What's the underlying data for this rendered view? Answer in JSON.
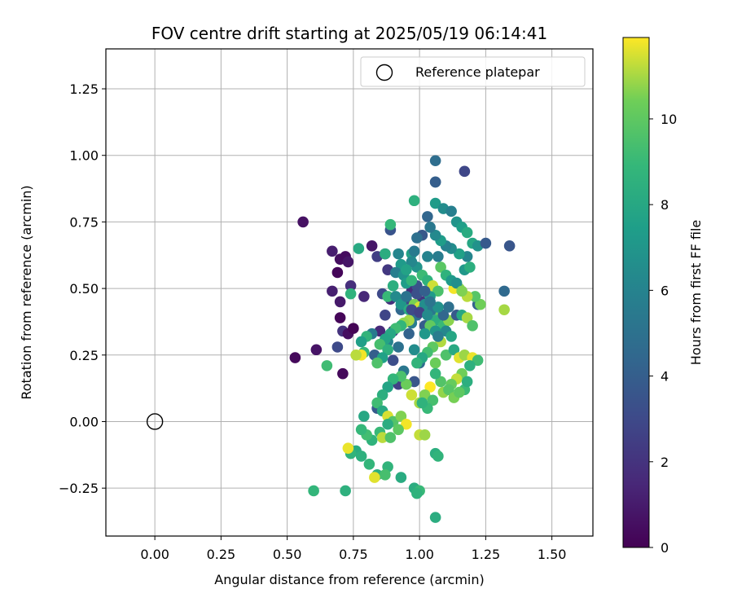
{
  "chart_data": {
    "type": "scatter",
    "title": "FOV centre drift starting at 2025/05/19 06:14:41",
    "xlabel": "Angular distance from reference (arcmin)",
    "ylabel": "Rotation from reference (arcmin)",
    "xlim": [
      -0.185,
      1.655
    ],
    "ylim": [
      -0.43,
      1.4
    ],
    "xticks": [
      0.0,
      0.25,
      0.5,
      0.75,
      1.0,
      1.25,
      1.5
    ],
    "xtick_labels": [
      "0.00",
      "0.25",
      "0.50",
      "0.75",
      "1.00",
      "1.25",
      "1.50"
    ],
    "yticks": [
      -0.25,
      0.0,
      0.25,
      0.5,
      0.75,
      1.0,
      1.25
    ],
    "ytick_labels": [
      "−0.25",
      "0.00",
      "0.25",
      "0.50",
      "0.75",
      "1.00",
      "1.25"
    ],
    "grid": true,
    "colormap": "viridis",
    "colorbar": {
      "label": "Hours from first FF file",
      "range": [
        0,
        11.9
      ],
      "ticks": [
        0,
        2,
        4,
        6,
        8,
        10
      ],
      "tick_labels": [
        "0",
        "2",
        "4",
        "6",
        "8",
        "10"
      ]
    },
    "legend": {
      "placement": "top-right",
      "entries": [
        {
          "label": "Reference platepar",
          "marker": "open-circle"
        }
      ]
    },
    "reference_point": {
      "x": 0.0,
      "y": 0.0
    },
    "series": [
      {
        "color_by": "hours",
        "points": [
          [
            0.56,
            0.75,
            0.6
          ],
          [
            0.53,
            0.24,
            0.3
          ],
          [
            0.61,
            0.27,
            0.7
          ],
          [
            0.67,
            0.64,
            1.1
          ],
          [
            0.7,
            0.61,
            0.5
          ],
          [
            0.72,
            0.62,
            0.4
          ],
          [
            0.73,
            0.6,
            0.8
          ],
          [
            0.69,
            0.56,
            0.2
          ],
          [
            0.67,
            0.49,
            1.2
          ],
          [
            0.7,
            0.45,
            0.9
          ],
          [
            0.74,
            0.51,
            1.8
          ],
          [
            0.7,
            0.39,
            0.2
          ],
          [
            0.71,
            0.34,
            2.0
          ],
          [
            0.73,
            0.33,
            0.5
          ],
          [
            0.75,
            0.35,
            0.1
          ],
          [
            0.69,
            0.28,
            3.0
          ],
          [
            0.71,
            0.18,
            0.3
          ],
          [
            0.79,
            0.47,
            1.5
          ],
          [
            0.82,
            0.66,
            0.8
          ],
          [
            0.84,
            0.62,
            2.5
          ],
          [
            0.87,
            0.63,
            1.0
          ],
          [
            0.89,
            0.72,
            3.5
          ],
          [
            0.88,
            0.57,
            2.2
          ],
          [
            0.86,
            0.48,
            3.0
          ],
          [
            0.89,
            0.46,
            1.9
          ],
          [
            0.87,
            0.4,
            2.8
          ],
          [
            0.85,
            0.34,
            1.6
          ],
          [
            0.9,
            0.34,
            2.4
          ],
          [
            0.82,
            0.33,
            5.5
          ],
          [
            0.83,
            0.25,
            4.0
          ],
          [
            0.88,
            0.3,
            6.0
          ],
          [
            0.9,
            0.23,
            3.2
          ],
          [
            0.92,
            0.28,
            5.0
          ],
          [
            0.84,
            0.05,
            3.8
          ],
          [
            0.92,
            0.14,
            2.6
          ],
          [
            0.93,
            0.42,
            4.5
          ],
          [
            0.95,
            0.46,
            2.9
          ],
          [
            0.97,
            0.49,
            1.7
          ],
          [
            0.99,
            0.51,
            3.4
          ],
          [
            1.01,
            0.45,
            2.1
          ],
          [
            0.99,
            0.4,
            4.8
          ],
          [
            1.02,
            0.36,
            3.9
          ],
          [
            0.97,
            0.37,
            5.6
          ],
          [
            0.96,
            0.33,
            4.2
          ],
          [
            0.98,
            0.27,
            6.5
          ],
          [
            1.0,
            0.22,
            4.7
          ],
          [
            0.94,
            0.19,
            5.3
          ],
          [
            0.98,
            0.15,
            3.6
          ],
          [
            0.92,
            0.63,
            6.1
          ],
          [
            0.93,
            0.59,
            7.2
          ],
          [
            0.91,
            0.56,
            5.7
          ],
          [
            0.94,
            0.55,
            6.8
          ],
          [
            0.95,
            0.52,
            7.4
          ],
          [
            0.9,
            0.51,
            8.4
          ],
          [
            0.88,
            0.47,
            9.0
          ],
          [
            0.91,
            0.47,
            6.4
          ],
          [
            0.93,
            0.44,
            7.0
          ],
          [
            0.96,
            0.42,
            8.2
          ],
          [
            0.98,
            0.44,
            10.5
          ],
          [
            1.0,
            0.43,
            11.5
          ],
          [
            1.01,
            0.42,
            9.8
          ],
          [
            0.96,
            0.38,
            11.0
          ],
          [
            0.94,
            0.37,
            10.8
          ],
          [
            0.93,
            0.36,
            8.8
          ],
          [
            0.91,
            0.35,
            9.2
          ],
          [
            0.89,
            0.33,
            8.0
          ],
          [
            0.87,
            0.31,
            7.8
          ],
          [
            0.85,
            0.29,
            9.4
          ],
          [
            0.88,
            0.27,
            8.5
          ],
          [
            0.86,
            0.24,
            7.6
          ],
          [
            0.84,
            0.22,
            9.6
          ],
          [
            0.8,
            0.32,
            8.7
          ],
          [
            0.78,
            0.3,
            7.5
          ],
          [
            0.79,
            0.26,
            8.9
          ],
          [
            0.78,
            0.25,
            11.8
          ],
          [
            0.76,
            0.25,
            11.2
          ],
          [
            0.74,
            0.48,
            8.6
          ],
          [
            0.77,
            0.65,
            8.1
          ],
          [
            0.87,
            0.63,
            8.3
          ],
          [
            0.89,
            0.74,
            8.9
          ],
          [
            0.97,
            0.63,
            7.7
          ],
          [
            0.99,
            0.58,
            6.9
          ],
          [
            1.01,
            0.55,
            9.1
          ],
          [
            1.03,
            0.53,
            8.6
          ],
          [
            1.05,
            0.51,
            11.4
          ],
          [
            1.07,
            0.49,
            9.5
          ],
          [
            1.04,
            0.47,
            7.3
          ],
          [
            1.02,
            0.44,
            6.6
          ],
          [
            1.05,
            0.42,
            5.4
          ],
          [
            1.08,
            0.4,
            9.9
          ],
          [
            1.06,
            0.38,
            8.4
          ],
          [
            1.04,
            0.36,
            10.1
          ],
          [
            1.02,
            0.33,
            7.1
          ],
          [
            1.07,
            0.34,
            8.3
          ],
          [
            1.09,
            0.36,
            9.0
          ],
          [
            1.11,
            0.38,
            10.7
          ],
          [
            1.1,
            0.34,
            6.2
          ],
          [
            1.12,
            0.32,
            7.9
          ],
          [
            1.08,
            0.3,
            11.1
          ],
          [
            1.05,
            0.28,
            10.0
          ],
          [
            1.03,
            0.26,
            9.3
          ],
          [
            1.01,
            0.24,
            8.0
          ],
          [
            0.99,
            0.22,
            8.7
          ],
          [
            1.06,
            0.22,
            10.3
          ],
          [
            1.1,
            0.25,
            9.6
          ],
          [
            1.13,
            0.27,
            8.1
          ],
          [
            1.15,
            0.24,
            11.6
          ],
          [
            1.17,
            0.25,
            10.9
          ],
          [
            1.2,
            0.24,
            11.7
          ],
          [
            1.22,
            0.23,
            9.2
          ],
          [
            1.19,
            0.21,
            8.5
          ],
          [
            1.16,
            0.18,
            10.4
          ],
          [
            1.14,
            0.16,
            11.3
          ],
          [
            1.12,
            0.14,
            10.2
          ],
          [
            1.08,
            0.15,
            9.7
          ],
          [
            1.06,
            0.18,
            8.8
          ],
          [
            1.04,
            0.13,
            11.9
          ],
          [
            1.02,
            0.1,
            10.6
          ],
          [
            1.0,
            0.07,
            11.0
          ],
          [
            1.05,
            0.08,
            9.4
          ],
          [
            1.09,
            0.11,
            10.8
          ],
          [
            1.11,
            0.12,
            9.8
          ],
          [
            1.13,
            0.09,
            10.5
          ],
          [
            1.17,
            0.12,
            9.1
          ],
          [
            1.18,
            0.15,
            8.4
          ],
          [
            1.15,
            0.11,
            10.0
          ],
          [
            1.03,
            0.05,
            9.0
          ],
          [
            1.01,
            0.07,
            8.6
          ],
          [
            0.97,
            0.1,
            11.4
          ],
          [
            0.95,
            0.14,
            10.3
          ],
          [
            0.93,
            0.17,
            9.5
          ],
          [
            0.9,
            0.16,
            8.8
          ],
          [
            0.88,
            0.13,
            7.8
          ],
          [
            0.86,
            0.1,
            8.4
          ],
          [
            0.84,
            0.07,
            9.2
          ],
          [
            0.86,
            0.04,
            8.1
          ],
          [
            0.88,
            0.02,
            11.5
          ],
          [
            0.9,
            0.0,
            9.7
          ],
          [
            0.93,
            0.02,
            10.6
          ],
          [
            0.95,
            -0.01,
            11.8
          ],
          [
            0.92,
            -0.03,
            10.0
          ],
          [
            0.88,
            -0.01,
            8.3
          ],
          [
            0.85,
            -0.04,
            9.0
          ],
          [
            0.82,
            -0.07,
            8.6
          ],
          [
            0.8,
            -0.05,
            9.3
          ],
          [
            0.79,
            0.02,
            8.0
          ],
          [
            0.78,
            -0.03,
            8.9
          ],
          [
            0.76,
            -0.11,
            8.2
          ],
          [
            0.74,
            -0.12,
            8.7
          ],
          [
            0.73,
            -0.1,
            11.7
          ],
          [
            0.78,
            -0.13,
            8.5
          ],
          [
            0.81,
            -0.16,
            8.8
          ],
          [
            0.84,
            -0.2,
            8.4
          ],
          [
            0.86,
            -0.06,
            11.2
          ],
          [
            0.89,
            -0.06,
            9.6
          ],
          [
            0.88,
            -0.17,
            8.7
          ],
          [
            0.87,
            -0.2,
            9.4
          ],
          [
            0.83,
            -0.21,
            11.6
          ],
          [
            0.93,
            -0.21,
            8.2
          ],
          [
            0.98,
            -0.25,
            8.3
          ],
          [
            1.0,
            -0.26,
            9.0
          ],
          [
            0.99,
            -0.27,
            8.6
          ],
          [
            0.72,
            -0.26,
            8.5
          ],
          [
            0.6,
            -0.26,
            8.8
          ],
          [
            0.65,
            0.21,
            9.2
          ],
          [
            1.0,
            -0.05,
            11.3
          ],
          [
            1.02,
            -0.05,
            10.9
          ],
          [
            1.06,
            -0.12,
            8.4
          ],
          [
            1.07,
            -0.13,
            8.7
          ],
          [
            1.06,
            -0.36,
            8.3
          ],
          [
            0.98,
            0.83,
            8.5
          ],
          [
            1.06,
            0.82,
            7.3
          ],
          [
            1.06,
            0.98,
            4.8
          ],
          [
            1.06,
            0.9,
            5.2
          ],
          [
            1.06,
            0.9,
            4.0
          ],
          [
            1.17,
            0.94,
            2.9
          ],
          [
            1.09,
            0.8,
            6.5
          ],
          [
            1.12,
            0.79,
            5.8
          ],
          [
            1.14,
            0.75,
            6.9
          ],
          [
            1.16,
            0.73,
            7.5
          ],
          [
            1.18,
            0.71,
            8.2
          ],
          [
            1.2,
            0.67,
            7.9
          ],
          [
            1.22,
            0.66,
            6.8
          ],
          [
            1.25,
            0.67,
            3.8
          ],
          [
            1.34,
            0.66,
            3.6
          ],
          [
            1.32,
            0.49,
            4.6
          ],
          [
            1.32,
            0.42,
            11.0
          ],
          [
            1.22,
            0.44,
            4.2
          ],
          [
            1.23,
            0.44,
            10.4
          ],
          [
            1.21,
            0.47,
            9.8
          ],
          [
            1.18,
            0.47,
            11.2
          ],
          [
            1.15,
            0.5,
            10.7
          ],
          [
            1.13,
            0.5,
            11.8
          ],
          [
            1.17,
            0.57,
            7.1
          ],
          [
            1.19,
            0.58,
            8.4
          ],
          [
            1.18,
            0.62,
            6.1
          ],
          [
            1.15,
            0.63,
            7.6
          ],
          [
            1.12,
            0.65,
            6.5
          ],
          [
            1.1,
            0.66,
            5.9
          ],
          [
            1.08,
            0.68,
            7.4
          ],
          [
            1.06,
            0.7,
            6.3
          ],
          [
            1.04,
            0.73,
            5.4
          ],
          [
            1.03,
            0.77,
            4.4
          ],
          [
            1.01,
            0.7,
            3.7
          ],
          [
            0.99,
            0.69,
            4.9
          ],
          [
            0.98,
            0.64,
            5.5
          ],
          [
            0.97,
            0.6,
            6.2
          ],
          [
            0.95,
            0.57,
            7.7
          ],
          [
            0.97,
            0.53,
            8.8
          ],
          [
            1.08,
            0.58,
            9.9
          ],
          [
            1.1,
            0.55,
            8.6
          ],
          [
            1.12,
            0.53,
            7.2
          ],
          [
            1.14,
            0.52,
            6.7
          ],
          [
            1.16,
            0.49,
            10.6
          ],
          [
            1.07,
            0.62,
            5.6
          ],
          [
            1.03,
            0.62,
            6.0
          ],
          [
            0.95,
            0.47,
            5.1
          ],
          [
            0.99,
            0.48,
            3.3
          ],
          [
            1.02,
            0.49,
            4.1
          ],
          [
            0.97,
            0.42,
            3.0
          ],
          [
            1.0,
            0.41,
            2.6
          ],
          [
            1.03,
            0.4,
            6.4
          ],
          [
            1.06,
            0.34,
            7.0
          ],
          [
            1.07,
            0.32,
            5.6
          ],
          [
            1.09,
            0.4,
            4.4
          ],
          [
            1.11,
            0.43,
            4.9
          ],
          [
            1.14,
            0.4,
            3.8
          ],
          [
            1.16,
            0.4,
            8.0
          ],
          [
            1.18,
            0.39,
            11.0
          ],
          [
            1.2,
            0.36,
            9.6
          ],
          [
            1.07,
            0.43,
            6.8
          ],
          [
            1.04,
            0.45,
            5.2
          ]
        ]
      }
    ]
  }
}
